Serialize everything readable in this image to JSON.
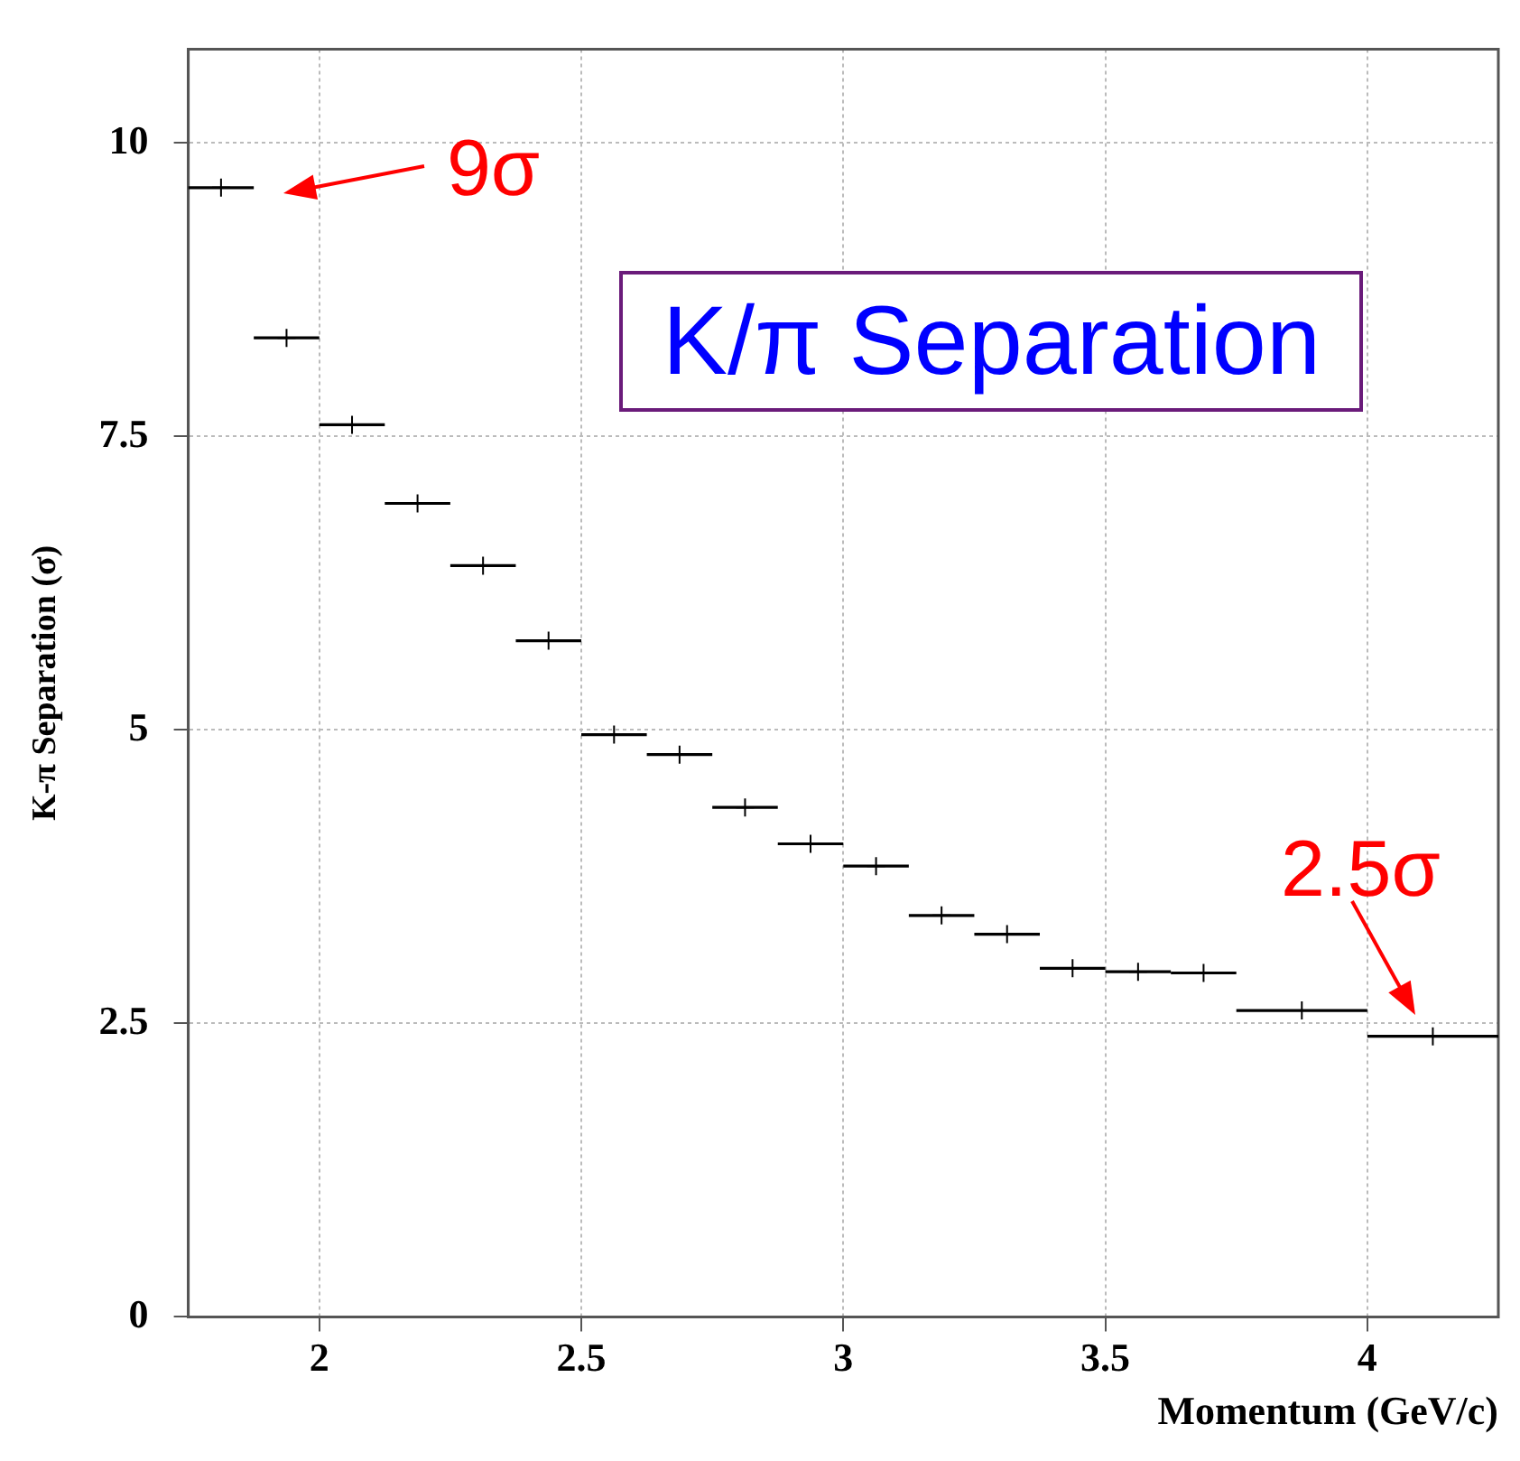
{
  "chart_data": {
    "type": "scatter",
    "xlabel": "Momentum (GeV/c)",
    "ylabel": "K-π Separation (σ)",
    "x": [
      1.8125,
      1.9375,
      2.0625,
      2.1875,
      2.3125,
      2.4375,
      2.5625,
      2.6875,
      2.8125,
      2.9375,
      3.0625,
      3.1875,
      3.3125,
      3.4375,
      3.5625,
      3.6875,
      3.875,
      4.125
    ],
    "values": [
      9.62,
      8.34,
      7.6,
      6.93,
      6.4,
      5.76,
      4.96,
      4.79,
      4.34,
      4.03,
      3.84,
      3.42,
      3.26,
      2.97,
      2.94,
      2.93,
      2.61,
      2.39
    ],
    "xerrors": [
      0.0625,
      0.0625,
      0.0625,
      0.0625,
      0.0625,
      0.0625,
      0.0625,
      0.0625,
      0.0625,
      0.0625,
      0.0625,
      0.0625,
      0.0625,
      0.0625,
      0.0625,
      0.0625,
      0.125,
      0.125
    ],
    "color": "#000000",
    "marker": "cross",
    "xlim": [
      1.75,
      4.25
    ],
    "xticks": [
      2,
      2.5,
      3,
      3.5,
      4
    ],
    "ylim": [
      0,
      10.8
    ],
    "yticks": [
      0,
      2.5,
      5,
      7.5,
      10
    ],
    "grid": true,
    "legend": false,
    "annotations": [
      "K/π Separation",
      {
        "text": "9σ",
        "x": 1.8125,
        "y": 9.62
      },
      {
        "text": "2.5σ",
        "x": 4.125,
        "y": 2.39
      }
    ]
  }
}
